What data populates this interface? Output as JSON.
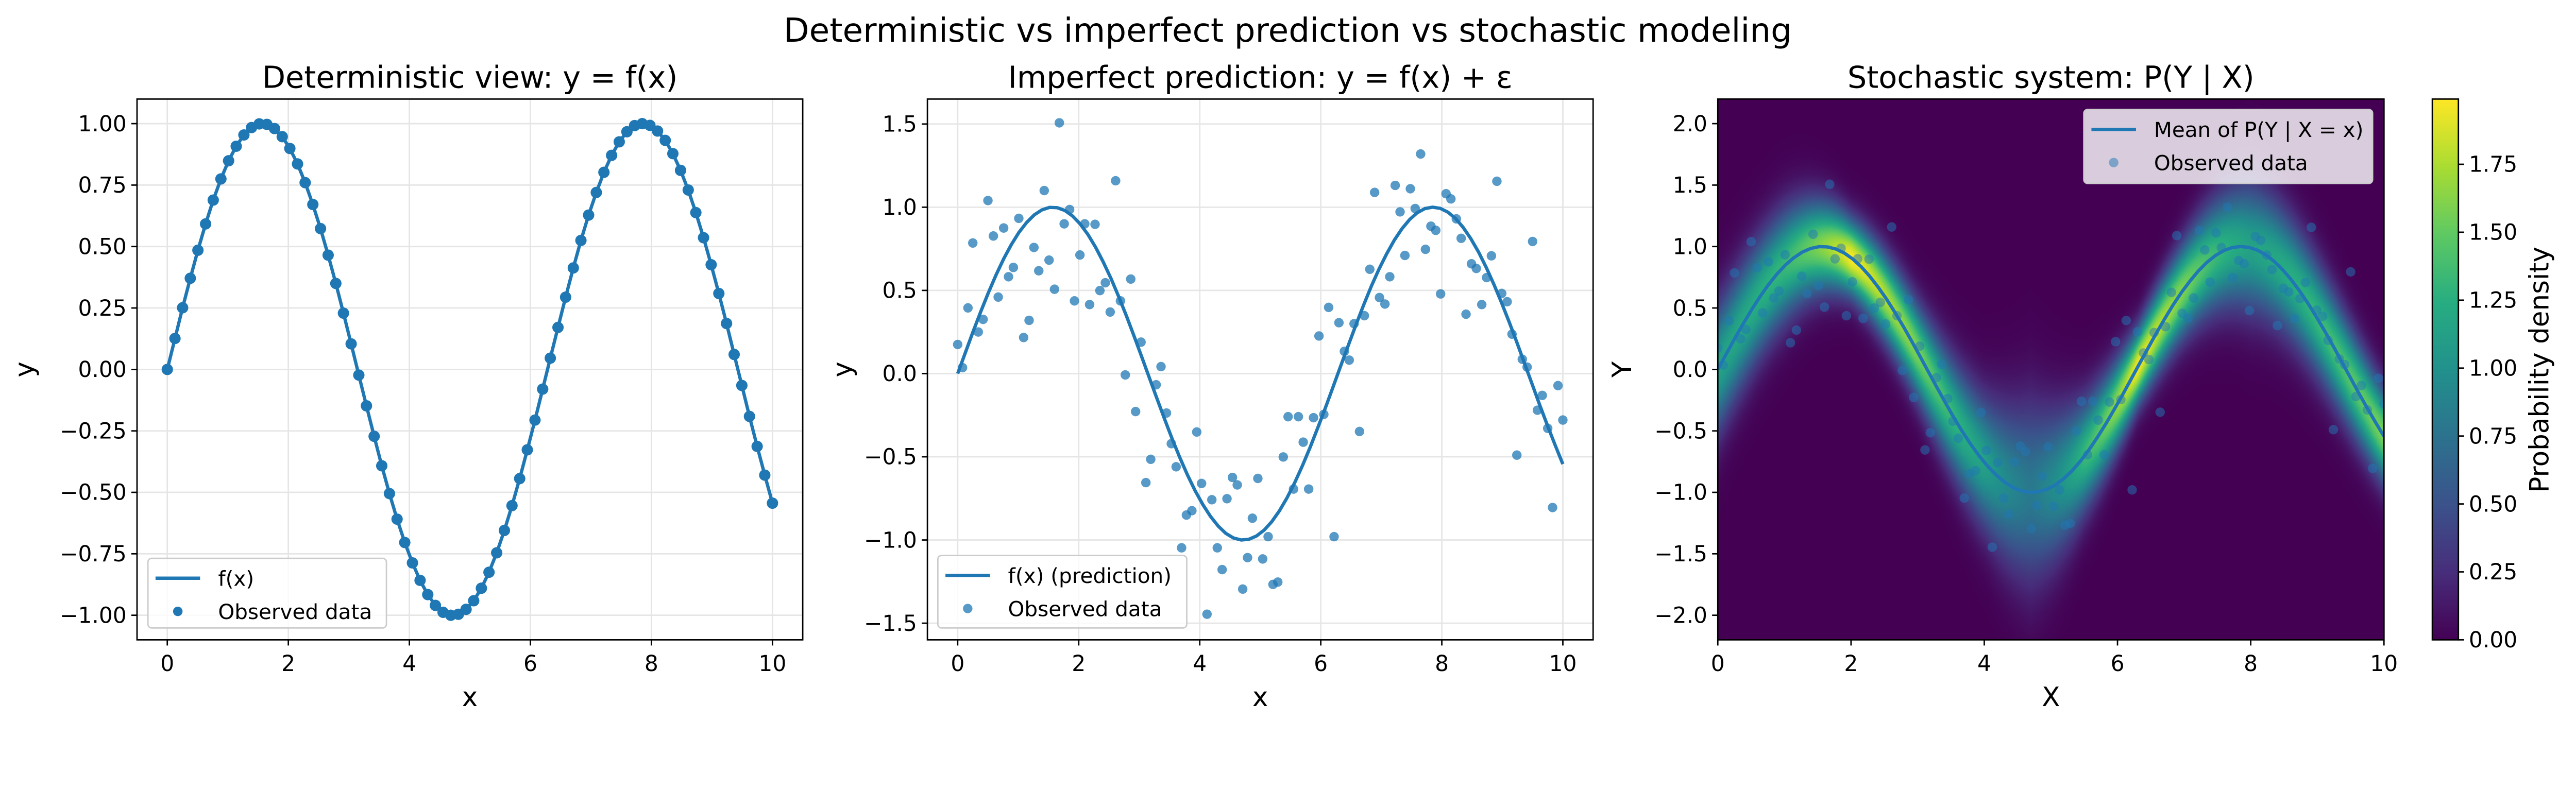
{
  "suptitle": "Deterministic vs imperfect prediction vs stochastic modeling",
  "colors": {
    "series": "#1f77b4",
    "grid": "#e5e5e5",
    "colormap": "viridis"
  },
  "chart_data": [
    {
      "type": "line+scatter",
      "title": "Deterministic view: y = f(x)",
      "xlabel": "x",
      "ylabel": "y",
      "xlim": [
        -0.5,
        10.5
      ],
      "ylim": [
        -1.1,
        1.1
      ],
      "xticks": [
        "0",
        "2",
        "4",
        "6",
        "8",
        "10"
      ],
      "yticks": [
        "−1.00",
        "−0.75",
        "−0.50",
        "−0.25",
        "0.00",
        "0.25",
        "0.50",
        "0.75",
        "1.00"
      ],
      "grid": true,
      "legend_placement": "lower-left",
      "legend": [
        "f(x)",
        "Observed data"
      ],
      "x": [
        0,
        0.127,
        0.253,
        0.38,
        0.506,
        0.633,
        0.759,
        0.886,
        1.013,
        1.139,
        1.266,
        1.392,
        1.519,
        1.646,
        1.772,
        1.899,
        2.025,
        2.152,
        2.278,
        2.405,
        2.532,
        2.658,
        2.785,
        2.911,
        3.038,
        3.165,
        3.291,
        3.418,
        3.544,
        3.671,
        3.797,
        3.924,
        4.051,
        4.177,
        4.304,
        4.43,
        4.557,
        4.684,
        4.81,
        4.937,
        5.063,
        5.19,
        5.316,
        5.443,
        5.57,
        5.696,
        5.823,
        5.949,
        6.076,
        6.203,
        6.329,
        6.456,
        6.582,
        6.709,
        6.835,
        6.962,
        7.089,
        7.215,
        7.342,
        7.468,
        7.595,
        7.722,
        7.848,
        7.975,
        8.101,
        8.228,
        8.354,
        8.481,
        8.608,
        8.734,
        8.861,
        8.987,
        9.114,
        9.241,
        9.367,
        9.494,
        9.62,
        9.747,
        9.873,
        10
      ],
      "y": [
        0,
        0.126,
        0.251,
        0.371,
        0.485,
        0.592,
        0.689,
        0.775,
        0.849,
        0.908,
        0.954,
        0.984,
        0.999,
        0.997,
        0.98,
        0.947,
        0.899,
        0.836,
        0.76,
        0.671,
        0.573,
        0.465,
        0.35,
        0.229,
        0.104,
        -0.023,
        -0.148,
        -0.272,
        -0.392,
        -0.505,
        -0.609,
        -0.704,
        -0.787,
        -0.858,
        -0.916,
        -0.96,
        -0.988,
        -1,
        -0.996,
        -0.976,
        -0.941,
        -0.89,
        -0.825,
        -0.746,
        -0.655,
        -0.554,
        -0.444,
        -0.327,
        -0.206,
        -0.08,
        0.046,
        0.171,
        0.294,
        0.413,
        0.525,
        0.628,
        0.72,
        0.802,
        0.871,
        0.926,
        0.967,
        0.992,
        1,
        0.993,
        0.97,
        0.932,
        0.878,
        0.81,
        0.73,
        0.638,
        0.536,
        0.426,
        0.309,
        0.187,
        0.061,
        -0.065,
        -0.191,
        -0.313,
        -0.43,
        -0.544
      ]
    },
    {
      "type": "line+scatter",
      "title": "Imperfect prediction: y = f(x) + ε",
      "xlabel": "x",
      "ylabel": "y",
      "xlim": [
        -0.5,
        10.5
      ],
      "ylim": [
        -1.6,
        1.65
      ],
      "xticks": [
        "0",
        "2",
        "4",
        "6",
        "8",
        "10"
      ],
      "yticks": [
        "−1.5",
        "−1.0",
        "−0.5",
        "0.0",
        "0.5",
        "1.0",
        "1.5"
      ],
      "grid": true,
      "legend_placement": "lower-left",
      "legend": [
        "f(x) (prediction)",
        "Observed data"
      ],
      "x": [
        0,
        0.08,
        0.17,
        0.25,
        0.34,
        0.42,
        0.5,
        0.59,
        0.67,
        0.76,
        0.84,
        0.92,
        1.01,
        1.09,
        1.18,
        1.26,
        1.34,
        1.43,
        1.51,
        1.6,
        1.68,
        1.76,
        1.85,
        1.93,
        2.02,
        2.1,
        2.18,
        2.27,
        2.35,
        2.44,
        2.52,
        2.61,
        2.69,
        2.77,
        2.86,
        2.94,
        3.03,
        3.11,
        3.19,
        3.28,
        3.36,
        3.45,
        3.53,
        3.61,
        3.7,
        3.78,
        3.87,
        3.95,
        4.03,
        4.12,
        4.2,
        4.29,
        4.37,
        4.45,
        4.54,
        4.62,
        4.71,
        4.79,
        4.87,
        4.96,
        5.04,
        5.13,
        5.21,
        5.29,
        5.38,
        5.46,
        5.55,
        5.63,
        5.71,
        5.8,
        5.88,
        5.97,
        6.05,
        6.13,
        6.22,
        6.3,
        6.39,
        6.47,
        6.55,
        6.64,
        6.72,
        6.81,
        6.89,
        6.97,
        7.06,
        7.14,
        7.23,
        7.31,
        7.39,
        7.48,
        7.56,
        7.65,
        7.73,
        7.82,
        7.9,
        7.98,
        8.07,
        8.15,
        8.24,
        8.32,
        8.4,
        8.49,
        8.57,
        8.66,
        8.74,
        8.82,
        8.91,
        8.99,
        9.08,
        9.16,
        9.24,
        9.33,
        9.41,
        9.5,
        9.58,
        9.66,
        9.75,
        9.83,
        9.92,
        10
      ],
      "y": [
        0.175,
        0.036,
        0.395,
        0.785,
        0.25,
        0.326,
        1.04,
        0.827,
        0.46,
        0.875,
        0.582,
        0.638,
        0.933,
        0.217,
        0.32,
        0.758,
        0.618,
        1.1,
        0.682,
        0.507,
        1.507,
        0.9,
        0.986,
        0.437,
        0.713,
        0.9,
        0.415,
        0.897,
        0.499,
        0.546,
        0.37,
        1.159,
        0.437,
        -0.008,
        0.568,
        -0.228,
        0.189,
        -0.655,
        -0.515,
        -0.067,
        0.042,
        -0.237,
        -0.421,
        -0.56,
        -1.047,
        -0.85,
        -0.824,
        -0.351,
        -0.66,
        -1.446,
        -0.758,
        -1.047,
        -1.178,
        -0.752,
        -0.624,
        -0.669,
        -1.295,
        -1.106,
        -0.869,
        -0.63,
        -1.114,
        -0.98,
        -1.267,
        -1.253,
        -0.501,
        -0.259,
        -0.694,
        -0.259,
        -0.412,
        -0.694,
        -0.265,
        0.226,
        -0.245,
        0.398,
        -0.98,
        0.306,
        0.134,
        0.081,
        0.3,
        -0.348,
        0.348,
        0.627,
        1.089,
        0.457,
        0.418,
        0.582,
        1.131,
        0.972,
        0.71,
        1.111,
        0.992,
        1.32,
        0.747,
        0.886,
        0.861,
        0.479,
        1.081,
        1.05,
        0.93,
        0.813,
        0.357,
        0.66,
        0.632,
        0.415,
        0.577,
        0.708,
        1.156,
        0.482,
        0.432,
        0.237,
        -0.49,
        0.086,
        0.039,
        0.794,
        -0.22,
        -0.131,
        -0.329,
        -0.805,
        -0.072,
        -0.279
      ]
    },
    {
      "type": "heatmap",
      "title": "Stochastic system: P(Y | X)",
      "xlabel": "X",
      "ylabel": "Y",
      "xlim": [
        0,
        10
      ],
      "ylim": [
        -2.2,
        2.2
      ],
      "xticks": [
        "0",
        "2",
        "4",
        "6",
        "8",
        "10"
      ],
      "yticks": [
        "−2.0",
        "−1.5",
        "−1.0",
        "−0.5",
        "0.0",
        "0.5",
        "1.0",
        "1.5",
        "2.0"
      ],
      "grid": false,
      "legend_placement": "upper-right",
      "legend": [
        "Mean of P(Y | X = x)",
        "Observed data"
      ],
      "mean": "f(x)",
      "spread_by_x": {
        "x": [
          0,
          1,
          2,
          3,
          4,
          4.7,
          5.5,
          6.3,
          7,
          8,
          9,
          10
        ],
        "sigma": [
          0.35,
          0.3,
          0.2,
          0.25,
          0.35,
          0.5,
          0.3,
          0.2,
          0.25,
          0.35,
          0.3,
          0.25
        ]
      },
      "colorbar": {
        "label": "Probability density",
        "range": [
          0,
          1.99
        ],
        "ticks": [
          "0.00",
          "0.25",
          "0.50",
          "0.75",
          "1.00",
          "1.25",
          "1.50",
          "1.75"
        ]
      }
    }
  ]
}
